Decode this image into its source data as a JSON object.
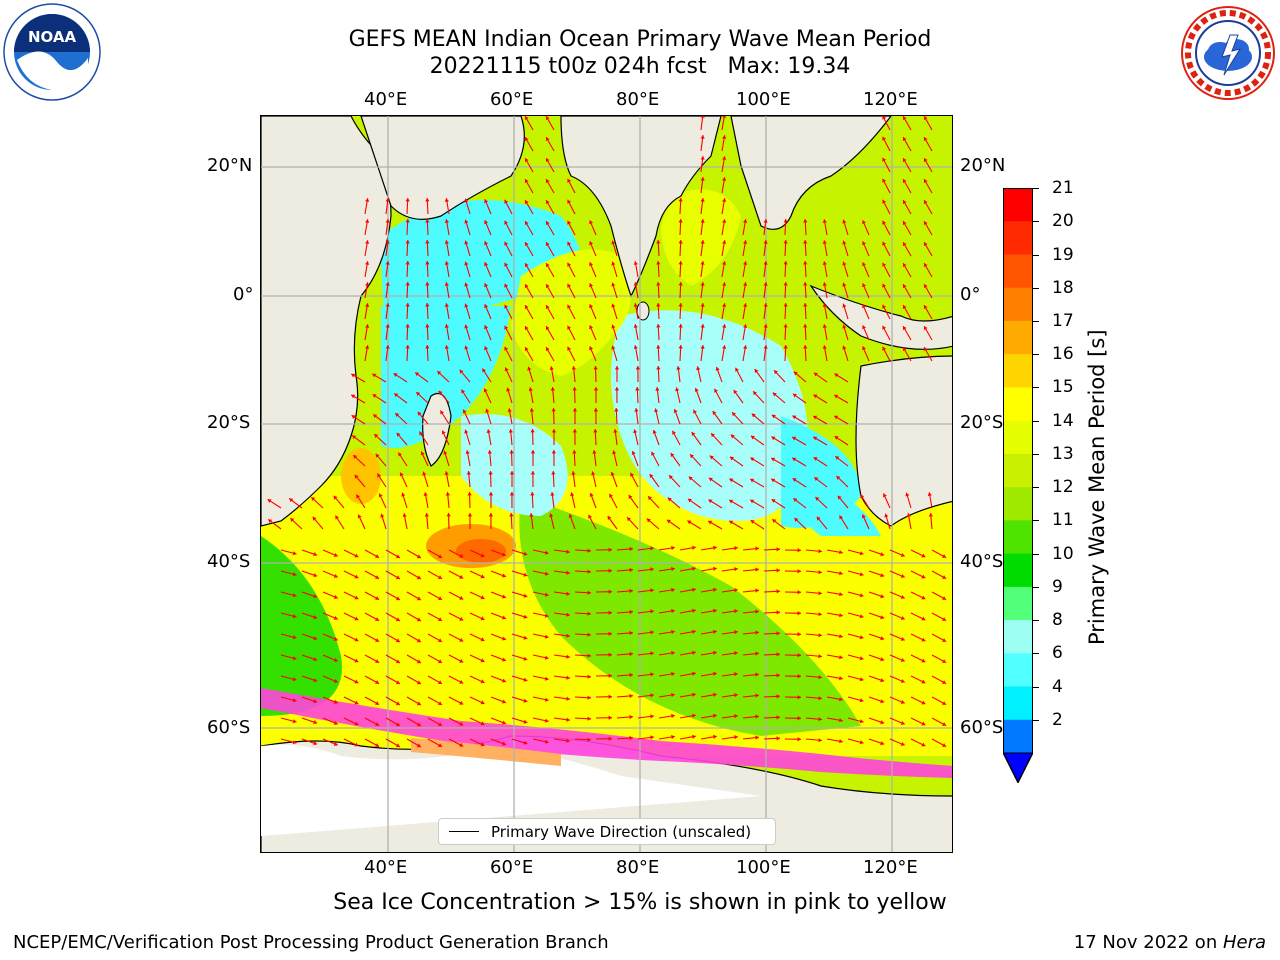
{
  "title_line1": "GEFS MEAN Indian Ocean Primary Wave Mean Period",
  "title_line2": "20221115 t00z 024h fcst   Max: 19.34",
  "lon_ticks": [
    "40°E",
    "60°E",
    "80°E",
    "100°E",
    "120°E"
  ],
  "lat_ticks": [
    "20°N",
    "0°",
    "20°S",
    "40°S",
    "60°S"
  ],
  "colorbar": {
    "label": "Primary Wave Mean Period [s]",
    "ticks": [
      "21",
      "20",
      "19",
      "18",
      "17",
      "16",
      "15",
      "14",
      "13",
      "12",
      "11",
      "10",
      "9",
      "8",
      "6",
      "4",
      "2"
    ],
    "colors": [
      "#ff0000",
      "#ff2a00",
      "#ff5500",
      "#ff8000",
      "#ffaa00",
      "#ffd500",
      "#ffff00",
      "#e6ff00",
      "#c8f000",
      "#a0ea00",
      "#4ee400",
      "#00dc00",
      "#52ff79",
      "#9dfff4",
      "#50ffff",
      "#00f0ff",
      "#0078ff"
    ],
    "extend_color": "#0000ff"
  },
  "legend_label": "Primary Wave Direction (unscaled)",
  "subtitle": "Sea Ice Concentration > 15% is shown in pink to yellow",
  "footer_left": "NCEP/EMC/Verification Post Processing Product Generation Branch",
  "footer_right_date": "17 Nov 2022 on ",
  "footer_right_machine": "Hera",
  "logos": {
    "left": {
      "name": "NOAA",
      "text": "NOAA"
    },
    "right": {
      "name": "National Weather Service"
    }
  },
  "colors": {
    "land": "#eeece0",
    "ocean_low": "#a8fff9",
    "arrow": "#ff0000",
    "ice": "#ff44dd"
  }
}
